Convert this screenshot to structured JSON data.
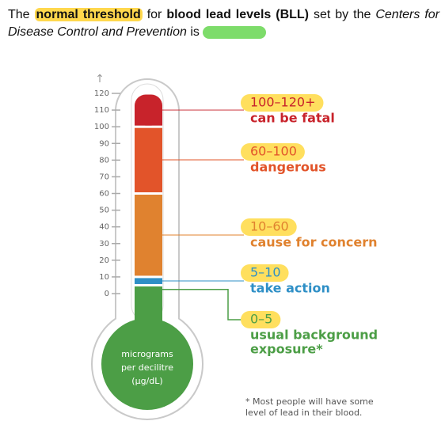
{
  "question": {
    "parts": [
      "The ",
      "normal threshold",
      " for ",
      "blood lead levels (BLL)",
      " set by the ",
      "Centers for Disease Control and Prevention",
      " is"
    ]
  },
  "thermometer": {
    "lim": [
      0,
      120
    ],
    "ticks": [
      0,
      10,
      20,
      30,
      40,
      50,
      60,
      70,
      80,
      90,
      100,
      110,
      120
    ],
    "unit": [
      "micrograms",
      "per decilitre",
      "(μg/dL)"
    ],
    "segments": [
      {
        "from": 100,
        "to": 120,
        "color": "#c8232b",
        "range": "100–120+",
        "label": [
          "can be fatal"
        ]
      },
      {
        "from": 60,
        "to": 100,
        "color": "#e2542a",
        "range": "60–100",
        "label": [
          "dangerous"
        ]
      },
      {
        "from": 10,
        "to": 60,
        "color": "#e0822f",
        "range": "10–60",
        "label": [
          "cause for concern"
        ]
      },
      {
        "from": 5,
        "to": 10,
        "color": "#2e8fc6",
        "range": "5–10",
        "label": [
          "take action"
        ]
      },
      {
        "from": 0,
        "to": 5,
        "color": "#4c9e46",
        "range": "0–5",
        "label": [
          "usual background",
          "exposure*"
        ]
      }
    ]
  },
  "footnote": [
    "* Most people will have some",
    "level of lead in their blood."
  ]
}
